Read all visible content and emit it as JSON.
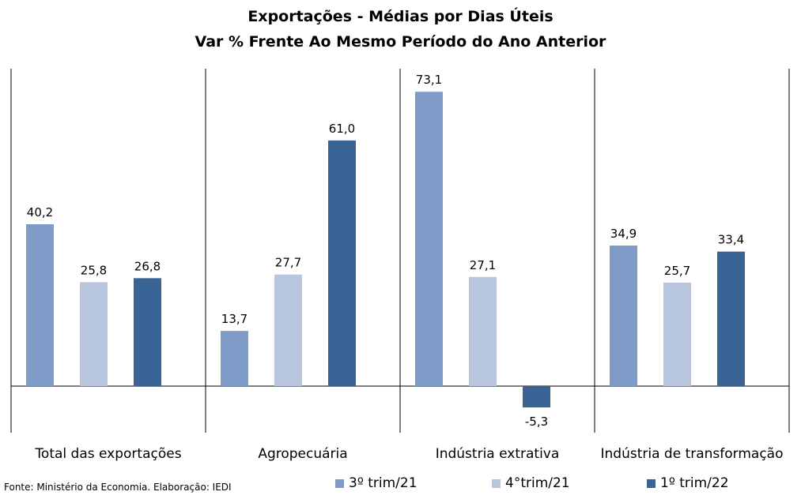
{
  "title": "Exportações - Médias por Dias Úteis",
  "subtitle": "Var % Frente Ao Mesmo Período do Ano Anterior",
  "source": "Fonte: Ministério da Economia. Elaboração: IEDI",
  "chart_data": {
    "type": "bar",
    "categories": [
      "Total das exportações",
      "Agropecuária",
      "Indústria extrativa",
      "Indústria de transformação"
    ],
    "series": [
      {
        "name": "3º trim/21",
        "color": "#7f9bc8",
        "values": [
          40.2,
          13.7,
          73.1,
          34.9
        ],
        "labels": [
          "40,2",
          "13,7",
          "73,1",
          "34,9"
        ]
      },
      {
        "name": "4°trim/21",
        "color": "#b7c5df",
        "values": [
          25.8,
          27.7,
          27.1,
          25.7
        ],
        "labels": [
          "25,8",
          "27,7",
          "27,1",
          "25,7"
        ]
      },
      {
        "name": "1º trim/22",
        "color": "#3b6496",
        "values": [
          26.8,
          61.0,
          -5.3,
          33.4
        ],
        "labels": [
          "26,8",
          "61,0",
          "-5,3",
          "33,4"
        ]
      }
    ],
    "title": "Exportações - Médias por Dias Úteis",
    "subtitle": "Var % Frente Ao Mesmo Período do Ano Anterior",
    "xlabel": "",
    "ylabel": "",
    "grid": false,
    "legend_position": "bottom"
  }
}
